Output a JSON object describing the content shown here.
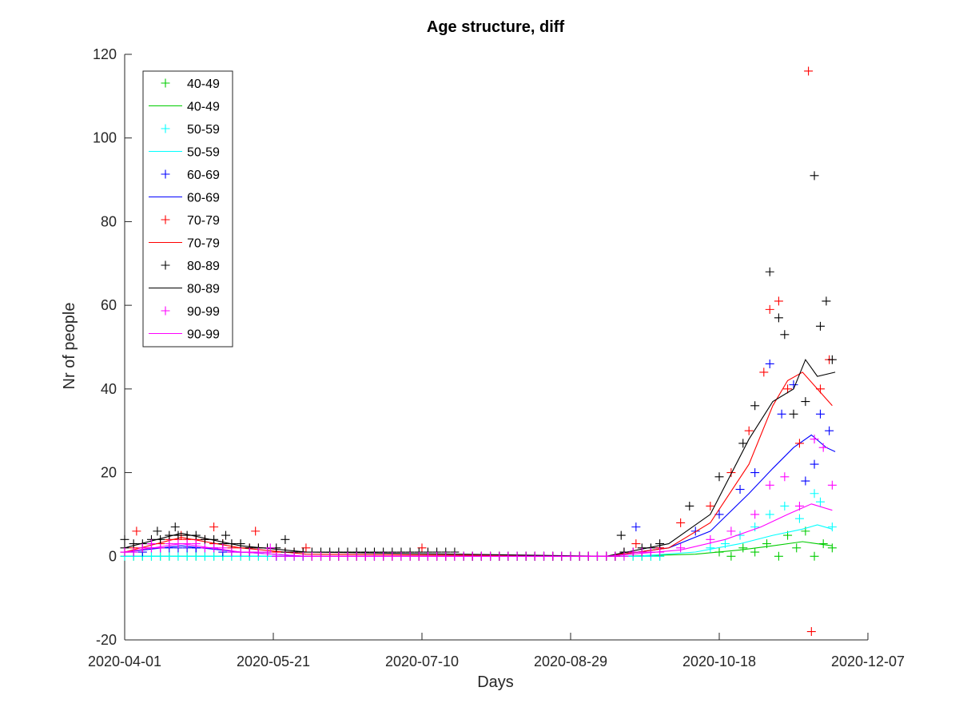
{
  "chart_data": {
    "type": "line",
    "title": "Age structure, diff",
    "xlabel": "Days",
    "ylabel": "Nr of people",
    "x_start_date": "2020-04-01",
    "x_ticks": [
      "2020-04-01",
      "2020-05-21",
      "2020-07-10",
      "2020-08-29",
      "2020-10-18",
      "2020-12-07"
    ],
    "xlim": [
      "2020-04-01",
      "2020-12-07"
    ],
    "ylim": [
      -20,
      120
    ],
    "y_ticks": [
      -20,
      0,
      20,
      40,
      60,
      80,
      100,
      120
    ],
    "grid": false,
    "legend_position": "top-left",
    "legend": [
      "40-49",
      "40-49",
      "50-59",
      "50-59",
      "60-69",
      "60-69",
      "70-79",
      "70-79",
      "80-89",
      "80-89",
      "90-99",
      "90-99"
    ],
    "series": [
      {
        "name": "40-49",
        "color": "#00cc00",
        "markers": [
          [
            "2020-10-18",
            1
          ],
          [
            "2020-10-22",
            0
          ],
          [
            "2020-10-26",
            2
          ],
          [
            "2020-10-30",
            1
          ],
          [
            "2020-11-03",
            3
          ],
          [
            "2020-11-07",
            0
          ],
          [
            "2020-11-10",
            5
          ],
          [
            "2020-11-13",
            2
          ],
          [
            "2020-11-16",
            6
          ],
          [
            "2020-11-19",
            0
          ],
          [
            "2020-11-22",
            3
          ],
          [
            "2020-11-25",
            2
          ]
        ],
        "line": [
          [
            "2020-04-01",
            0
          ],
          [
            "2020-09-15",
            0
          ],
          [
            "2020-10-10",
            0.5
          ],
          [
            "2020-10-25",
            1.5
          ],
          [
            "2020-11-05",
            2.5
          ],
          [
            "2020-11-15",
            3.5
          ],
          [
            "2020-11-25",
            2.5
          ]
        ]
      },
      {
        "name": "50-59",
        "color": "#00ffff",
        "markers": [
          [
            "2020-10-15",
            2
          ],
          [
            "2020-10-20",
            3
          ],
          [
            "2020-10-25",
            5
          ],
          [
            "2020-10-30",
            7
          ],
          [
            "2020-11-04",
            10
          ],
          [
            "2020-11-09",
            12
          ],
          [
            "2020-11-14",
            9
          ],
          [
            "2020-11-19",
            15
          ],
          [
            "2020-11-21",
            13
          ],
          [
            "2020-11-25",
            7
          ]
        ],
        "line": [
          [
            "2020-04-01",
            0
          ],
          [
            "2020-09-20",
            0
          ],
          [
            "2020-10-10",
            1
          ],
          [
            "2020-10-25",
            3
          ],
          [
            "2020-11-05",
            5
          ],
          [
            "2020-11-15",
            6.5
          ],
          [
            "2020-11-20",
            7.5
          ],
          [
            "2020-11-25",
            6.5
          ]
        ]
      },
      {
        "name": "60-69",
        "color": "#0000ff",
        "markers": [
          [
            "2020-04-10",
            3
          ],
          [
            "2020-04-25",
            2
          ],
          [
            "2020-05-10",
            1
          ],
          [
            "2020-09-20",
            7
          ],
          [
            "2020-10-10",
            6
          ],
          [
            "2020-10-18",
            10
          ],
          [
            "2020-10-25",
            16
          ],
          [
            "2020-10-30",
            20
          ],
          [
            "2020-11-04",
            46
          ],
          [
            "2020-11-08",
            34
          ],
          [
            "2020-11-12",
            41
          ],
          [
            "2020-11-16",
            18
          ],
          [
            "2020-11-19",
            22
          ],
          [
            "2020-11-21",
            34
          ],
          [
            "2020-11-24",
            30
          ]
        ],
        "line": [
          [
            "2020-04-01",
            1
          ],
          [
            "2020-04-20",
            2.5
          ],
          [
            "2020-05-10",
            1
          ],
          [
            "2020-06-01",
            0
          ],
          [
            "2020-09-10",
            0
          ],
          [
            "2020-10-01",
            2
          ],
          [
            "2020-10-15",
            6
          ],
          [
            "2020-10-28",
            15
          ],
          [
            "2020-11-05",
            21
          ],
          [
            "2020-11-12",
            26
          ],
          [
            "2020-11-18",
            29
          ],
          [
            "2020-11-23",
            26
          ],
          [
            "2020-11-26",
            25
          ]
        ]
      },
      {
        "name": "70-79",
        "color": "#ff0000",
        "markers": [
          [
            "2020-04-05",
            6
          ],
          [
            "2020-04-20",
            5
          ],
          [
            "2020-05-01",
            7
          ],
          [
            "2020-05-15",
            6
          ],
          [
            "2020-06-01",
            2
          ],
          [
            "2020-07-10",
            2
          ],
          [
            "2020-09-20",
            3
          ],
          [
            "2020-10-05",
            8
          ],
          [
            "2020-10-15",
            12
          ],
          [
            "2020-10-22",
            20
          ],
          [
            "2020-10-28",
            30
          ],
          [
            "2020-11-02",
            44
          ],
          [
            "2020-11-04",
            59
          ],
          [
            "2020-11-07",
            61
          ],
          [
            "2020-11-10",
            40
          ],
          [
            "2020-11-14",
            27
          ],
          [
            "2020-11-17",
            116
          ],
          [
            "2020-11-18",
            -18
          ],
          [
            "2020-11-21",
            40
          ],
          [
            "2020-11-24",
            47
          ]
        ],
        "line": [
          [
            "2020-04-01",
            1
          ],
          [
            "2020-04-20",
            4.5
          ],
          [
            "2020-05-10",
            2
          ],
          [
            "2020-06-01",
            0.5
          ],
          [
            "2020-09-10",
            0
          ],
          [
            "2020-10-01",
            2
          ],
          [
            "2020-10-15",
            8
          ],
          [
            "2020-10-28",
            22
          ],
          [
            "2020-11-05",
            36
          ],
          [
            "2020-11-10",
            42
          ],
          [
            "2020-11-15",
            44
          ],
          [
            "2020-11-20",
            40
          ],
          [
            "2020-11-25",
            36
          ]
        ]
      },
      {
        "name": "80-89",
        "color": "#000000",
        "markers": [
          [
            "2020-04-01",
            4
          ],
          [
            "2020-04-12",
            6
          ],
          [
            "2020-04-18",
            7
          ],
          [
            "2020-05-05",
            5
          ],
          [
            "2020-05-25",
            4
          ],
          [
            "2020-09-15",
            5
          ],
          [
            "2020-10-08",
            12
          ],
          [
            "2020-10-18",
            19
          ],
          [
            "2020-10-26",
            27
          ],
          [
            "2020-10-30",
            36
          ],
          [
            "2020-11-04",
            68
          ],
          [
            "2020-11-07",
            57
          ],
          [
            "2020-11-09",
            53
          ],
          [
            "2020-11-12",
            34
          ],
          [
            "2020-11-16",
            37
          ],
          [
            "2020-11-19",
            91
          ],
          [
            "2020-11-21",
            55
          ],
          [
            "2020-11-23",
            61
          ],
          [
            "2020-11-25",
            47
          ]
        ],
        "line": [
          [
            "2020-04-01",
            2
          ],
          [
            "2020-04-20",
            5.5
          ],
          [
            "2020-05-10",
            2.5
          ],
          [
            "2020-06-01",
            1
          ],
          [
            "2020-09-10",
            0
          ],
          [
            "2020-10-01",
            3
          ],
          [
            "2020-10-15",
            10
          ],
          [
            "2020-10-28",
            28
          ],
          [
            "2020-11-05",
            37
          ],
          [
            "2020-11-12",
            40
          ],
          [
            "2020-11-16",
            47
          ],
          [
            "2020-11-20",
            43
          ],
          [
            "2020-11-26",
            44
          ]
        ]
      },
      {
        "name": "90-99",
        "color": "#ff00ff",
        "markers": [
          [
            "2020-04-10",
            3
          ],
          [
            "2020-05-20",
            2
          ],
          [
            "2020-10-05",
            2
          ],
          [
            "2020-10-15",
            4
          ],
          [
            "2020-10-22",
            6
          ],
          [
            "2020-10-30",
            10
          ],
          [
            "2020-11-04",
            17
          ],
          [
            "2020-11-09",
            19
          ],
          [
            "2020-11-14",
            12
          ],
          [
            "2020-11-19",
            28
          ],
          [
            "2020-11-22",
            26
          ],
          [
            "2020-11-25",
            17
          ]
        ],
        "line": [
          [
            "2020-04-01",
            1
          ],
          [
            "2020-04-20",
            3
          ],
          [
            "2020-05-10",
            1
          ],
          [
            "2020-06-01",
            0
          ],
          [
            "2020-09-10",
            0
          ],
          [
            "2020-10-05",
            1.5
          ],
          [
            "2020-10-20",
            4
          ],
          [
            "2020-11-01",
            7
          ],
          [
            "2020-11-10",
            10
          ],
          [
            "2020-11-18",
            12.5
          ],
          [
            "2020-11-25",
            11
          ]
        ]
      }
    ]
  }
}
